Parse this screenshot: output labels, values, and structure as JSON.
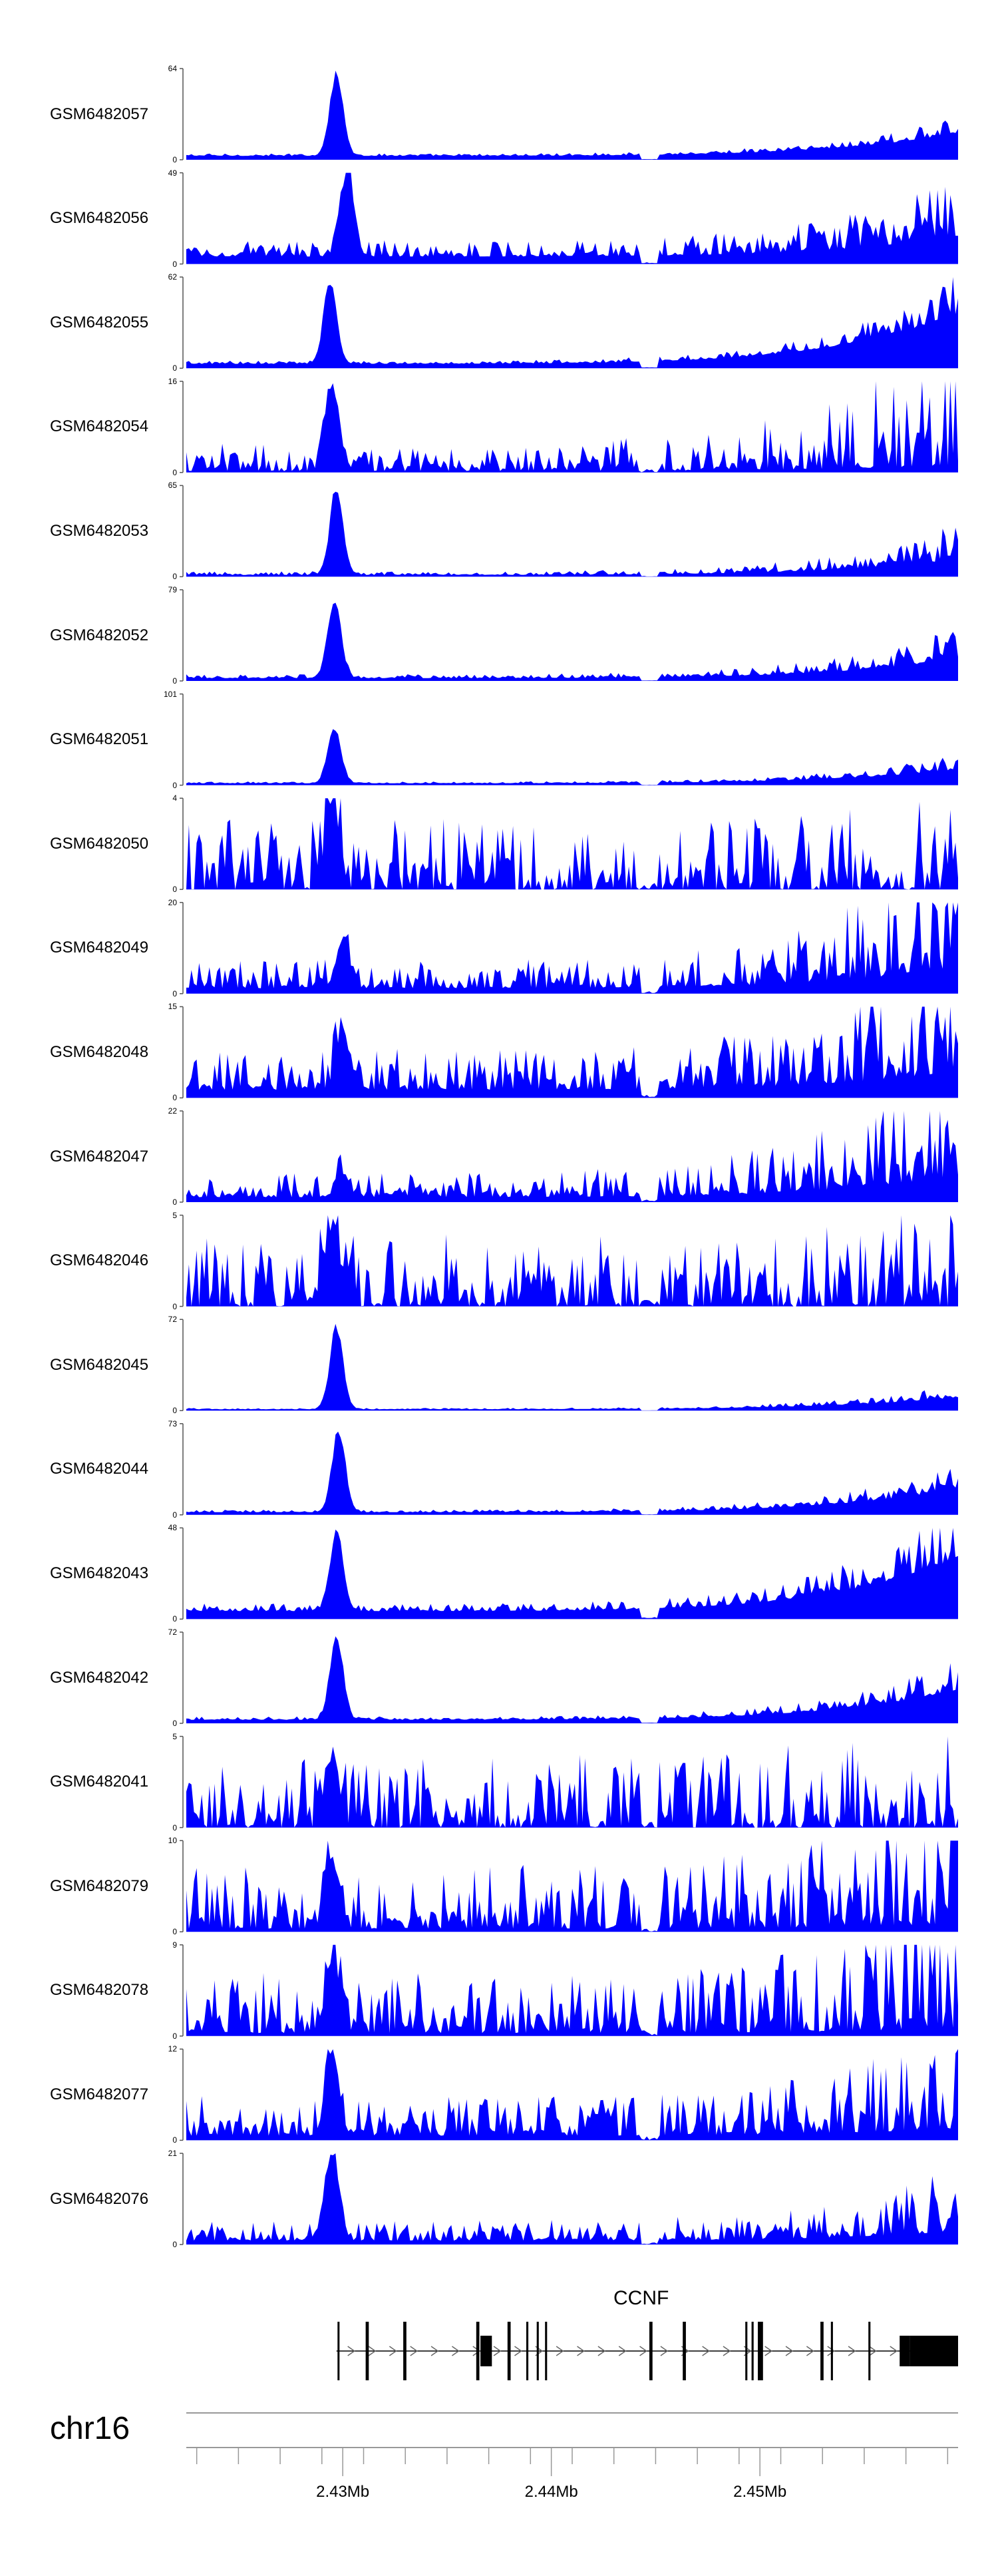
{
  "colors": {
    "signal": "#0000FF",
    "axis": "#555555",
    "gene": "#000000",
    "ideogram": "#999999"
  },
  "chart_data": {
    "type": "area",
    "title": "",
    "xlabel": "",
    "x_range_bp": [
      2422500,
      2459500
    ],
    "tracks": [
      {
        "name": "GSM6482057",
        "ylim": [
          0,
          64
        ],
        "peak_bp": 2429700,
        "peak": 64,
        "base": 3.5,
        "tail": 24,
        "noise": 0.22
      },
      {
        "name": "GSM6482056",
        "ylim": [
          0,
          49
        ],
        "peak_bp": 2430200,
        "peak": 49,
        "base": 8,
        "tail": 30,
        "noise": 0.5
      },
      {
        "name": "GSM6482055",
        "ylim": [
          0,
          62
        ],
        "peak_bp": 2429400,
        "peak": 60,
        "base": 4,
        "tail": 50,
        "noise": 0.25
      },
      {
        "name": "GSM6482054",
        "ylim": [
          0,
          16
        ],
        "peak_bp": 2429500,
        "peak": 16,
        "base": 2.5,
        "tail": 14,
        "noise": 0.9
      },
      {
        "name": "GSM6482053",
        "ylim": [
          0,
          65
        ],
        "peak_bp": 2429700,
        "peak": 65,
        "base": 2.5,
        "tail": 25,
        "noise": 0.5
      },
      {
        "name": "GSM6482052",
        "ylim": [
          0,
          79
        ],
        "peak_bp": 2429600,
        "peak": 74,
        "base": 4,
        "tail": 32,
        "noise": 0.4
      },
      {
        "name": "GSM6482051",
        "ylim": [
          0,
          101
        ],
        "peak_bp": 2429600,
        "peak": 67,
        "base": 3,
        "tail": 25,
        "noise": 0.3
      },
      {
        "name": "GSM6482050",
        "ylim": [
          0,
          4
        ],
        "peak_bp": 2429500,
        "peak": 4,
        "base": 1.4,
        "tail": 2,
        "noise": 1.0
      },
      {
        "name": "GSM6482049",
        "ylim": [
          0,
          20
        ],
        "peak_bp": 2430000,
        "peak": 11,
        "base": 4,
        "tail": 20,
        "noise": 0.7
      },
      {
        "name": "GSM6482048",
        "ylim": [
          0,
          15
        ],
        "peak_bp": 2430000,
        "peak": 10,
        "base": 4.5,
        "tail": 15,
        "noise": 0.7
      },
      {
        "name": "GSM6482047",
        "ylim": [
          0,
          22
        ],
        "peak_bp": 2430000,
        "peak": 5,
        "base": 4,
        "tail": 22,
        "noise": 0.7
      },
      {
        "name": "GSM6482046",
        "ylim": [
          0,
          5
        ],
        "peak_bp": 2429500,
        "peak": 5,
        "base": 1.8,
        "tail": 3,
        "noise": 1.0
      },
      {
        "name": "GSM6482045",
        "ylim": [
          0,
          72
        ],
        "peak_bp": 2429700,
        "peak": 70,
        "base": 1.5,
        "tail": 15,
        "noise": 0.3
      },
      {
        "name": "GSM6482044",
        "ylim": [
          0,
          73
        ],
        "peak_bp": 2429800,
        "peak": 72,
        "base": 3,
        "tail": 30,
        "noise": 0.3
      },
      {
        "name": "GSM6482043",
        "ylim": [
          0,
          48
        ],
        "peak_bp": 2429700,
        "peak": 46,
        "base": 6,
        "tail": 46,
        "noise": 0.3
      },
      {
        "name": "GSM6482042",
        "ylim": [
          0,
          72
        ],
        "peak_bp": 2429700,
        "peak": 70,
        "base": 4,
        "tail": 38,
        "noise": 0.3
      },
      {
        "name": "GSM6482041",
        "ylim": [
          0,
          5
        ],
        "peak_bp": 2429500,
        "peak": 4,
        "base": 1.8,
        "tail": 3,
        "noise": 1.0
      },
      {
        "name": "GSM6482079",
        "ylim": [
          0,
          10
        ],
        "peak_bp": 2429500,
        "peak": 8,
        "base": 3.5,
        "tail": 9,
        "noise": 0.9
      },
      {
        "name": "GSM6482078",
        "ylim": [
          0,
          9
        ],
        "peak_bp": 2429500,
        "peak": 8,
        "base": 3,
        "tail": 8,
        "noise": 0.9
      },
      {
        "name": "GSM6482077",
        "ylim": [
          0,
          12
        ],
        "peak_bp": 2429500,
        "peak": 12,
        "base": 3,
        "tail": 8,
        "noise": 0.8
      },
      {
        "name": "GSM6482076",
        "ylim": [
          0,
          21
        ],
        "peak_bp": 2429500,
        "peak": 21,
        "base": 3,
        "tail": 10,
        "noise": 0.7
      }
    ],
    "gene": {
      "name": "CCNF",
      "strand": "+",
      "start_bp": 2429700,
      "end_bp": 2459500,
      "exons_bp": [
        [
          2429750,
          2429830
        ],
        [
          2431100,
          2431250
        ],
        [
          2432900,
          2433050
        ],
        [
          2436400,
          2436550
        ],
        [
          2436600,
          2437150
        ],
        [
          2437900,
          2438050
        ],
        [
          2438800,
          2438900
        ],
        [
          2439300,
          2439400
        ],
        [
          2439700,
          2439800
        ],
        [
          2444700,
          2444850
        ],
        [
          2446300,
          2446450
        ],
        [
          2449300,
          2449400
        ],
        [
          2449600,
          2449700
        ],
        [
          2449900,
          2450150
        ],
        [
          2452900,
          2453050
        ],
        [
          2453400,
          2453500
        ],
        [
          2455200,
          2455300
        ],
        [
          2456700,
          2457200
        ],
        [
          2457200,
          2459500
        ]
      ]
    },
    "chromosome": "chr16",
    "ticks": [
      {
        "bp": 2430000,
        "label": "2.43Mb"
      },
      {
        "bp": 2440000,
        "label": "2.44Mb"
      },
      {
        "bp": 2450000,
        "label": "2.45Mb"
      }
    ]
  }
}
